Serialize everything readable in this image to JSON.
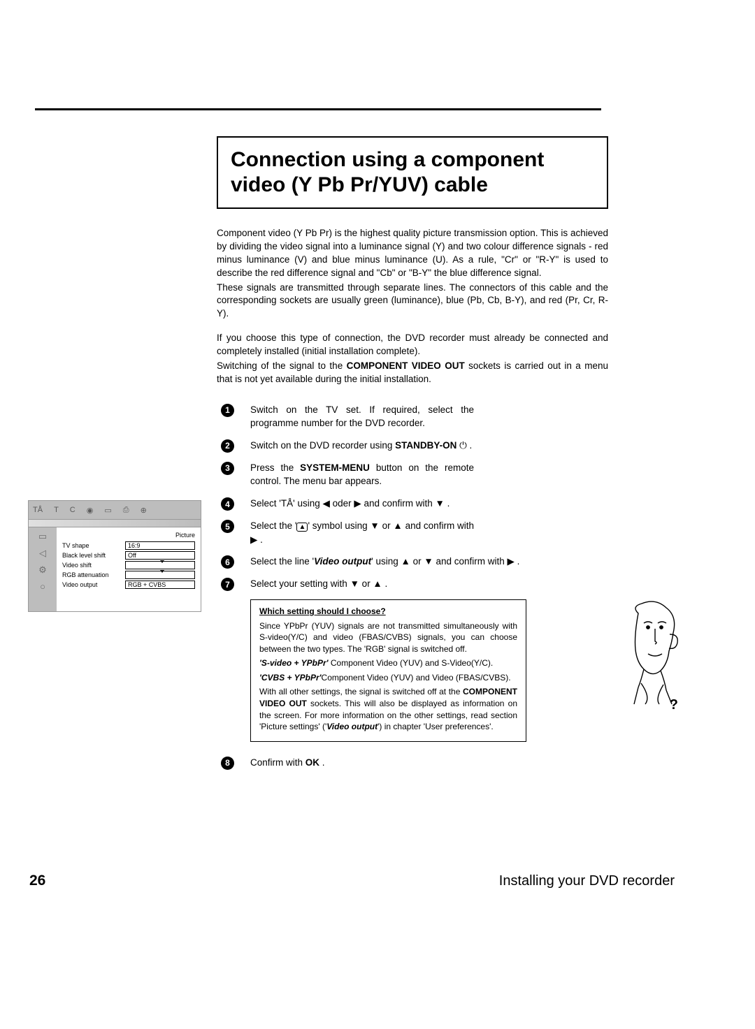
{
  "page_number": "26",
  "footer": "Installing your DVD recorder",
  "title": "Connection using a component video (Y Pb Pr/YUV) cable",
  "intro": {
    "p1": "Component video (Y Pb Pr) is the highest quality picture transmission option. This is achieved by dividing the video signal into a luminance signal (Y) and two colour difference signals - red minus luminance (V) and blue minus luminance (U). As a rule, \"Cr\" or \"R-Y\" is used to describe the red difference signal and \"Cb\" or \"B-Y\" the blue difference signal.",
    "p2": "These signals are transmitted through separate lines. The connectors of this cable and the corresponding sockets are usually green (luminance), blue (Pb, Cb, B-Y), and red (Pr, Cr, R-Y).",
    "p3a": "If you choose this type of connection, the DVD recorder must already be connected and completely installed (initial installation complete).",
    "p3b_pre": "Switching of the signal to the ",
    "p3b_bold": "COMPONENT VIDEO OUT",
    "p3b_post": " sockets is carried out in a menu that is not yet available during the initial installation."
  },
  "steps": {
    "s1": "Switch on the TV set. If required, select the programme number for the DVD recorder.",
    "s2_pre": "Switch on the DVD recorder using ",
    "s2_bold": "STANDBY-ON",
    "s2_post": " ⏻ .",
    "s3_pre": "Press the ",
    "s3_bold": "SYSTEM-MENU",
    "s3_post": " button on the remote control. The menu bar appears.",
    "s4": "Select '",
    "s4_mid": "' using ◀ oder ▶ and confirm with ▼ .",
    "s5_pre": "Select the '",
    "s5_post": "' symbol using ▼ or ▲ and confirm with ▶ .",
    "s6_pre": "Select the line '",
    "s6_italic": "Video output",
    "s6_post": "' using ▲ or ▼ and confirm with ▶ .",
    "s7": "Select your setting with ▼ or ▲ .",
    "s8_pre": "Confirm with ",
    "s8_bold": "OK",
    "s8_post": " ."
  },
  "callout": {
    "heading": "Which setting should I choose?",
    "p1": "Since YPbPr (YUV) signals are not transmitted simultaneously with S-video(Y/C) and video (FBAS/CVBS) signals, you can choose between the two types. The 'RGB' signal is switched off.",
    "opt1_label": "'S-video + YPbPr'",
    "opt1_text": " Component Video (YUV) and S-Video(Y/C).",
    "opt2_label": "'CVBS + YPbPr'",
    "opt2_text": "Component Video (YUV) and Video (FBAS/CVBS).",
    "p4_pre": "With all other settings, the signal is switched off at the ",
    "p4_bold": "COMPONENT VIDEO OUT",
    "p4_mid": " sockets. This will also be displayed as information on the screen. For more information on the other settings, read section 'Picture settings' ('",
    "p4_italic": "Video output",
    "p4_post": "') in chapter 'User preferences'."
  },
  "osd": {
    "caption": "Picture",
    "rows": [
      {
        "label": "TV shape",
        "value": "16:9",
        "type": "text"
      },
      {
        "label": "Black level shift",
        "value": "Off",
        "type": "text"
      },
      {
        "label": "Video shift",
        "value": "",
        "type": "slider"
      },
      {
        "label": "RGB attenuation",
        "value": "",
        "type": "slider"
      },
      {
        "label": "Video output",
        "value": "RGB + CVBS",
        "type": "text"
      }
    ],
    "topbar_icons": [
      "T",
      "C"
    ],
    "side_icons": [
      "▭",
      "◁",
      "⚙",
      "○"
    ]
  }
}
